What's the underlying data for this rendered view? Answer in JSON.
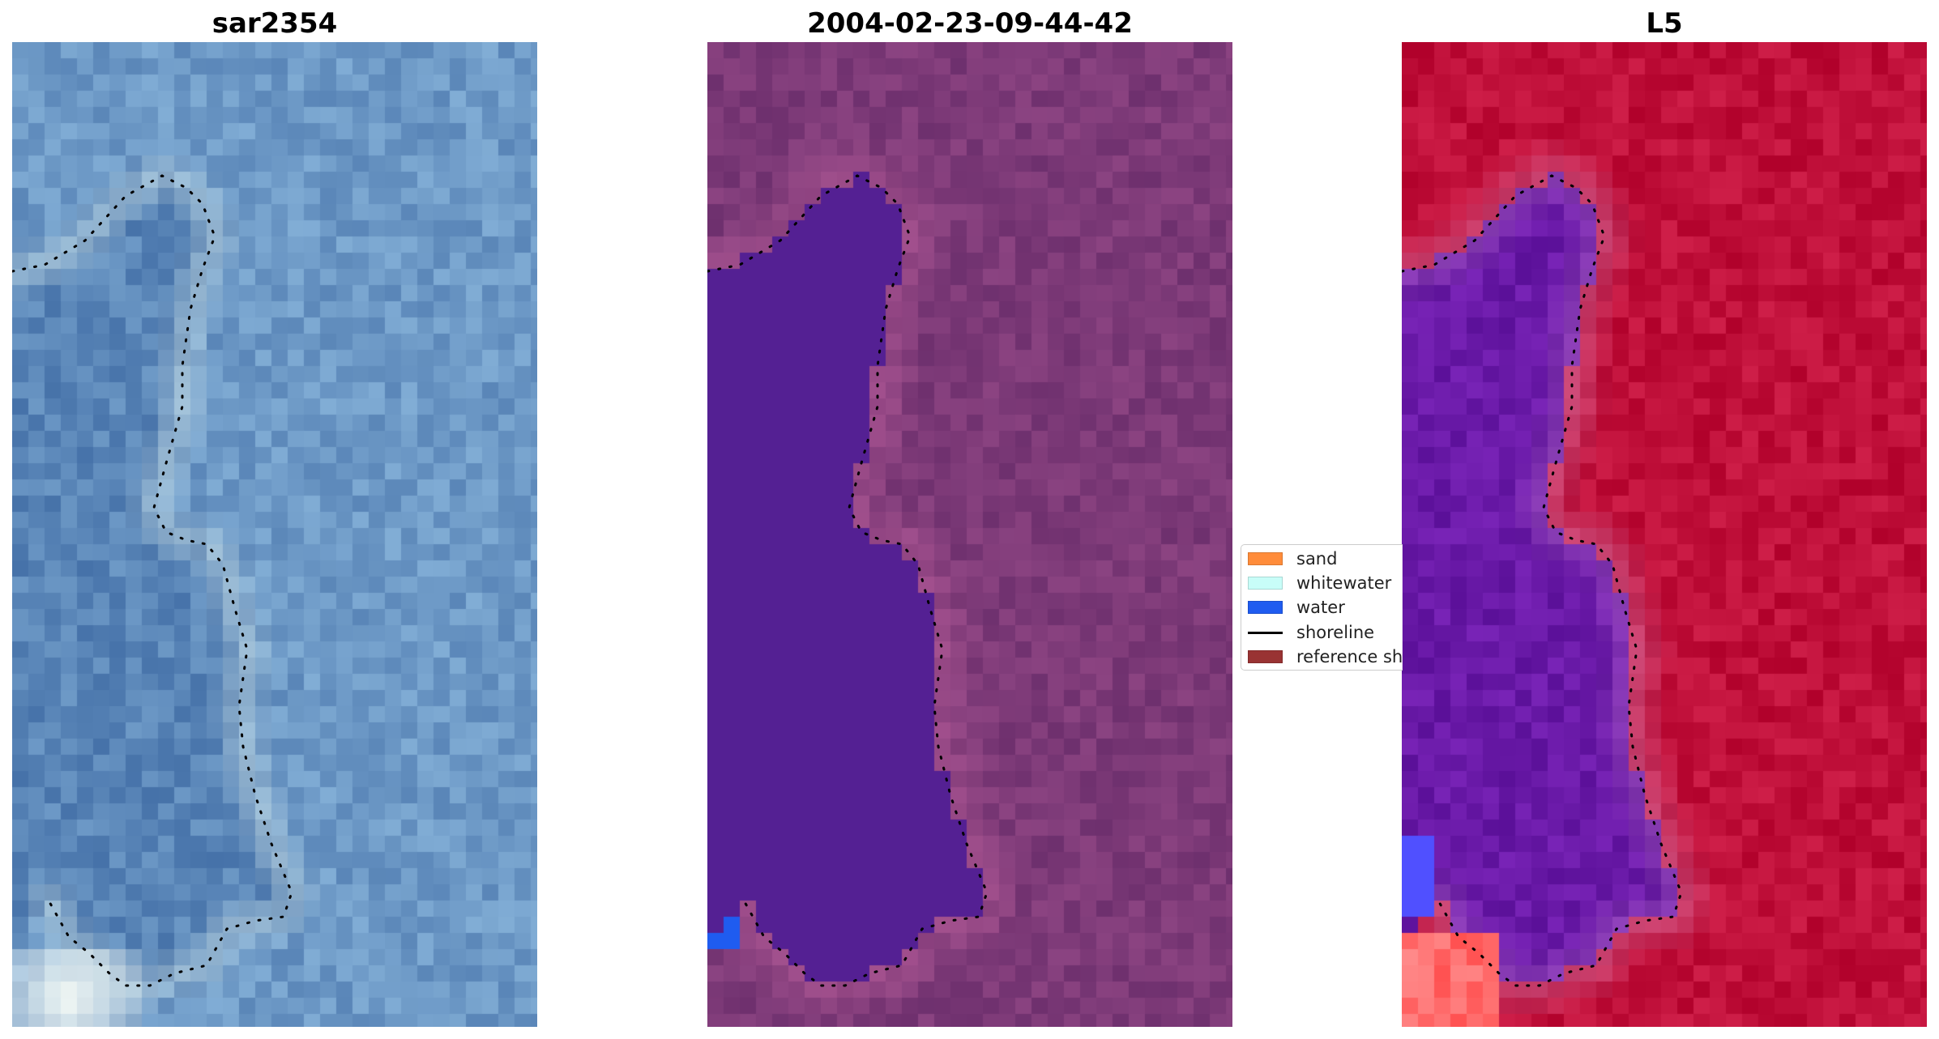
{
  "panels": [
    {
      "id": "rgb",
      "title": "sar2354"
    },
    {
      "id": "classified",
      "title": "2004-02-23-09-44-42"
    },
    {
      "id": "mndwi",
      "title": "L5"
    }
  ],
  "legend": {
    "items": [
      {
        "label": "sand",
        "color": "#ff8c3a",
        "kind": "patch"
      },
      {
        "label": "whitewater",
        "color": "#c8fdf8",
        "kind": "patch"
      },
      {
        "label": "water",
        "color": "#1f5cf0",
        "kind": "patch"
      },
      {
        "label": "shoreline",
        "color": "#000000",
        "kind": "line"
      },
      {
        "label": "reference shoreline",
        "color": "#993333",
        "kind": "patch"
      }
    ]
  },
  "colors": {
    "rgb_base": "#5a86b8",
    "classified_land": "#7d3a78",
    "classified_water": "#542093",
    "mndwi_land": "#c0103a",
    "mndwi_water": "#6a1aa8"
  }
}
